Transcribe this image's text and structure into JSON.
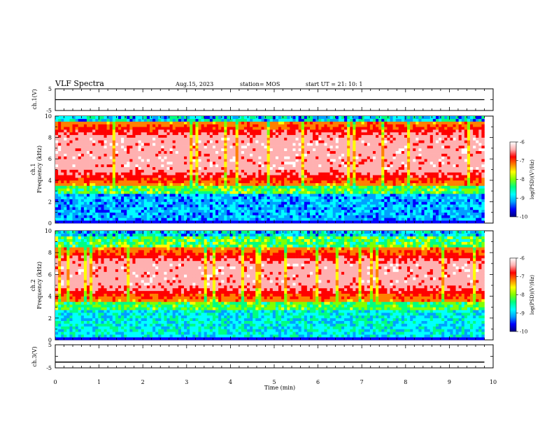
{
  "header": {
    "title": "VLF Spectra",
    "date": "Aug.15, 2023",
    "station": "station= MOS",
    "start": "start UT =   21: 10: 1"
  },
  "chart_data": {
    "type": "heatmap",
    "x_label": "Time (min)",
    "x_range": [
      0,
      10
    ],
    "x_ticks": [
      "0",
      "1",
      "2",
      "3",
      "4",
      "5",
      "6",
      "7",
      "8",
      "9",
      "10"
    ],
    "panels": [
      {
        "id": "ch1-waveform",
        "ylabel": "ch.1(V)",
        "y_range": [
          -5,
          5
        ],
        "y_ticks": [
          "5",
          "-5"
        ],
        "trace_level": 0,
        "trace_end_min": 9.8
      },
      {
        "id": "ch1-spectrogram",
        "ylabel_1": "ch.1",
        "ylabel_2": "Frequency (kHz)",
        "y_range": [
          0,
          10
        ],
        "y_ticks": [
          "0",
          "2",
          "4",
          "6",
          "8",
          "10"
        ],
        "data_end_min": 9.8,
        "band_description": "strong emission 4-9.5 kHz, weak below 3.5 kHz",
        "band_low_khz": 3.5,
        "band_high_khz": 9.5
      },
      {
        "id": "ch2-spectrogram",
        "ylabel_1": "ch.2",
        "ylabel_2": "Frequency (kHz)",
        "y_range": [
          0,
          10
        ],
        "y_ticks": [
          "0",
          "2",
          "4",
          "6",
          "8",
          "10"
        ],
        "data_end_min": 9.8,
        "band_low_khz": 3.5,
        "band_high_khz": 8.5
      },
      {
        "id": "ch3-waveform",
        "ylabel": "ch.3(V)",
        "y_range": [
          -5,
          5
        ],
        "y_ticks": [
          "5",
          "-5"
        ],
        "trace_level": -2.5,
        "trace_end_min": 9.8
      }
    ],
    "colorbar": {
      "label": "log(PSD)(V²/Hz)",
      "range": [
        -10,
        -6
      ],
      "ticks": [
        "-6",
        "-7",
        "-8",
        "-9",
        "-10"
      ],
      "colors": [
        "#000080",
        "#0000ff",
        "#00a0ff",
        "#00ffff",
        "#00ff80",
        "#80ff00",
        "#ffff00",
        "#ff8000",
        "#ff0000",
        "#ffb0b0",
        "#ffffff"
      ]
    }
  }
}
